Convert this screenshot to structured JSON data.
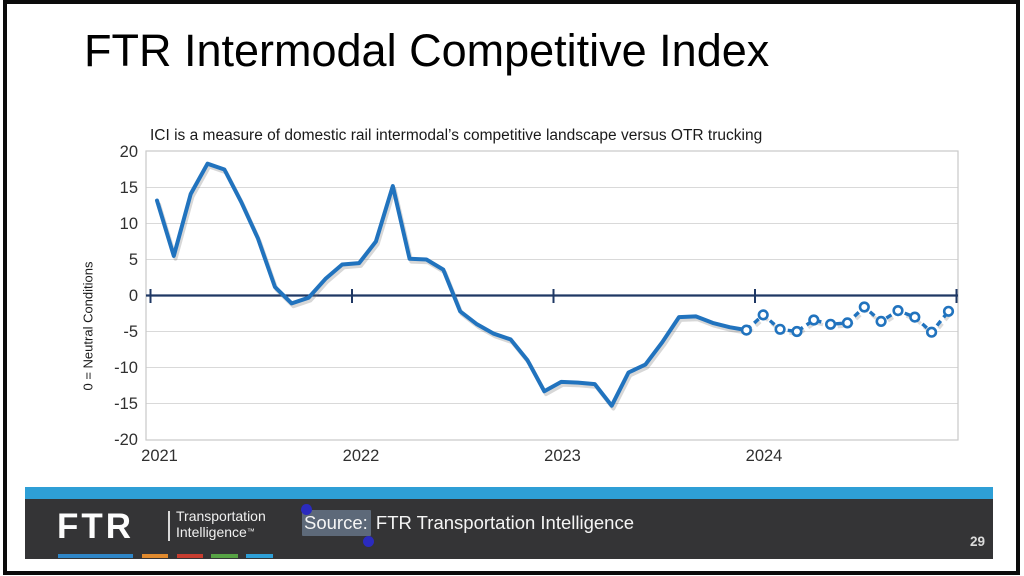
{
  "slide": {
    "title": "FTR Intermodal Competitive Index",
    "page_number": "29"
  },
  "chart_data": {
    "type": "line",
    "title": "ICI is a measure of domestic rail intermodal’s competitive landscape versus OTR trucking",
    "ylabel": "0 = Neutral Conditions",
    "xlabel": "",
    "ylim": [
      -20,
      20
    ],
    "y_ticks": [
      20,
      15,
      10,
      5,
      0,
      -5,
      -10,
      -15,
      -20
    ],
    "x_tick_labels": [
      "2021",
      "2022",
      "2023",
      "2024"
    ],
    "x_start": "2021-01",
    "x_frequency": "monthly",
    "grid": true,
    "zero_axis": true,
    "legend": "none",
    "series": [
      {
        "name": "ICI (history)",
        "style": "solid",
        "start_index": 0,
        "values": [
          13.2,
          5.5,
          14.1,
          18.3,
          17.5,
          13.0,
          7.9,
          1.2,
          -1.1,
          -0.3,
          2.3,
          4.3,
          4.5,
          7.5,
          15.2,
          5.1,
          5.0,
          3.6,
          -2.2,
          -4.0,
          -5.3,
          -6.1,
          -9.0,
          -13.3,
          -12.0,
          -12.1,
          -12.3,
          -15.3,
          -10.7,
          -9.6,
          -6.5,
          -3.0,
          -2.9,
          -3.8,
          -4.4,
          -4.8
        ]
      },
      {
        "name": "ICI (forecast)",
        "style": "dashed-open-markers",
        "start_index": 35,
        "values": [
          -4.8,
          -2.7,
          -4.7,
          -5.0,
          -3.4,
          -4.0,
          -3.8,
          -1.6,
          -3.6,
          -2.1,
          -3.0,
          -5.1,
          -2.2
        ]
      }
    ]
  },
  "footer": {
    "logo_text": "FTR",
    "tagline_line1": "Transportation",
    "tagline_line2": "Intelligence",
    "trademark": "™",
    "source_label": "Source:",
    "source_rest": " FTR Transportation Intelligence"
  },
  "colors": {
    "line_blue": "#2173BE",
    "zero_line": "#1F3864",
    "gridline": "#D9D9D9",
    "plot_frame": "#C9C9C9",
    "axis_text": "#303030",
    "footer_bg": "#343436",
    "footer_accent": "#2E9FD6",
    "brand_dashes": [
      "#2F86C7",
      "#E08A2E",
      "#C63D30",
      "#57A345",
      "#2E9FD6"
    ],
    "selection_handle": "#2B2BBF",
    "selection_highlight": "rgba(145,170,205,0.45)"
  }
}
